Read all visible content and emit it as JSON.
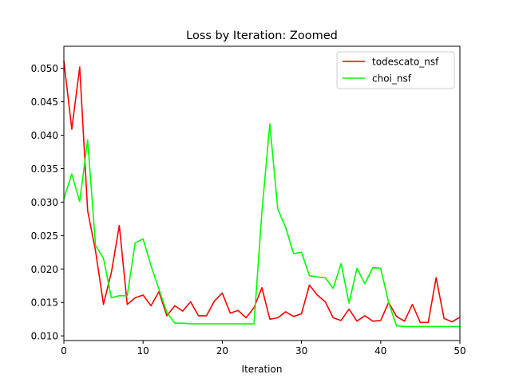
{
  "chart_data": {
    "type": "line",
    "title": "Loss by Iteration: Zoomed",
    "xlabel": "Iteration",
    "ylabel": "",
    "xlim": [
      0,
      50
    ],
    "ylim": [
      0.0093,
      0.0533
    ],
    "xticks": [
      0,
      10,
      20,
      30,
      40,
      50
    ],
    "yticks": [
      0.01,
      0.015,
      0.02,
      0.025,
      0.03,
      0.035,
      0.04,
      0.045,
      0.05
    ],
    "ytick_labels": [
      "0.010",
      "0.015",
      "0.020",
      "0.025",
      "0.030",
      "0.035",
      "0.040",
      "0.045",
      "0.050"
    ],
    "grid": false,
    "legend_position": "top-right",
    "x": [
      0,
      1,
      2,
      3,
      4,
      5,
      6,
      7,
      8,
      9,
      10,
      11,
      12,
      13,
      14,
      15,
      16,
      17,
      18,
      19,
      20,
      21,
      22,
      23,
      24,
      25,
      26,
      27,
      28,
      29,
      30,
      31,
      32,
      33,
      34,
      35,
      36,
      37,
      38,
      39,
      40,
      41,
      42,
      43,
      44,
      45,
      46,
      47,
      48,
      49,
      50
    ],
    "series": [
      {
        "name": "todescato_nsf",
        "color": "#ff0000",
        "values": [
          0.0511,
          0.0409,
          0.0502,
          0.0287,
          0.0227,
          0.0147,
          0.0195,
          0.0265,
          0.0147,
          0.0157,
          0.0161,
          0.0145,
          0.0166,
          0.013,
          0.0145,
          0.0137,
          0.0151,
          0.013,
          0.013,
          0.0152,
          0.0164,
          0.0134,
          0.0138,
          0.0127,
          0.0142,
          0.0172,
          0.0125,
          0.0127,
          0.0136,
          0.0129,
          0.0133,
          0.0176,
          0.0161,
          0.0151,
          0.0127,
          0.0123,
          0.014,
          0.0122,
          0.013,
          0.0122,
          0.0123,
          0.015,
          0.0129,
          0.0122,
          0.0147,
          0.012,
          0.012,
          0.0187,
          0.0126,
          0.0121,
          0.0128
        ]
      },
      {
        "name": "choi_nsf",
        "color": "#00ff00",
        "values": [
          0.0305,
          0.0342,
          0.0301,
          0.0393,
          0.0235,
          0.0216,
          0.0157,
          0.016,
          0.016,
          0.0239,
          0.0245,
          0.0205,
          0.017,
          0.0135,
          0.0119,
          0.0119,
          0.0118,
          0.0118,
          0.0118,
          0.0118,
          0.0118,
          0.0118,
          0.0118,
          0.0118,
          0.0118,
          0.0285,
          0.0417,
          0.029,
          0.0262,
          0.0223,
          0.0225,
          0.019,
          0.0188,
          0.0187,
          0.0171,
          0.0208,
          0.0149,
          0.0201,
          0.0178,
          0.0202,
          0.0201,
          0.015,
          0.0115,
          0.0114,
          0.0114,
          0.0114,
          0.0114,
          0.0114,
          0.0114,
          0.0114,
          0.0114
        ]
      }
    ]
  }
}
